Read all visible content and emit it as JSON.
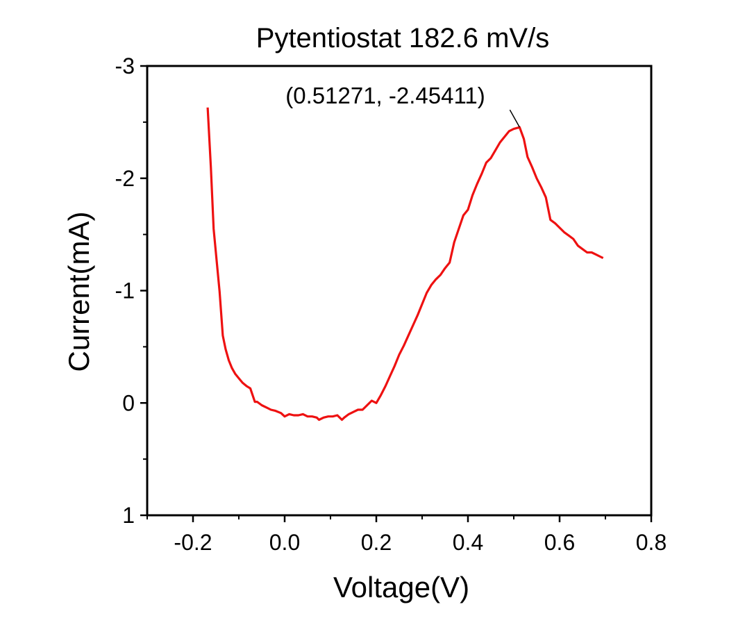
{
  "chart_data": {
    "type": "line",
    "title": "Pytentiostat 182.6 mV/s",
    "xlabel": "Voltage(V)",
    "ylabel": "Current(mA)",
    "xlim": [
      -0.3,
      0.8
    ],
    "ylim": [
      1,
      -3
    ],
    "y_axis_inverted": true,
    "xticks": [
      -0.2,
      0.0,
      0.2,
      0.4,
      0.6,
      0.8
    ],
    "xtick_labels": [
      "-0.2",
      "0.0",
      "0.2",
      "0.4",
      "0.6",
      "0.8"
    ],
    "yticks": [
      -3,
      -2,
      -1,
      0,
      1
    ],
    "ytick_labels": [
      "-3",
      "-2",
      "-1",
      "0",
      "1"
    ],
    "grid": false,
    "legend": "none",
    "series": [
      {
        "color": "#ee1111",
        "x": [
          -0.168,
          -0.161,
          -0.155,
          -0.148,
          -0.142,
          -0.135,
          -0.129,
          -0.122,
          -0.115,
          -0.108,
          -0.1,
          -0.092,
          -0.083,
          -0.075,
          -0.065,
          -0.06,
          -0.05,
          -0.04,
          -0.03,
          -0.02,
          -0.008,
          0.0,
          0.01,
          0.02,
          0.03,
          0.04,
          0.05,
          0.06,
          0.07,
          0.075,
          0.085,
          0.095,
          0.105,
          0.115,
          0.125,
          0.13,
          0.14,
          0.15,
          0.16,
          0.17,
          0.18,
          0.19,
          0.2,
          0.21,
          0.22,
          0.23,
          0.24,
          0.25,
          0.26,
          0.27,
          0.28,
          0.29,
          0.3,
          0.31,
          0.32,
          0.33,
          0.34,
          0.35,
          0.36,
          0.37,
          0.38,
          0.39,
          0.4,
          0.41,
          0.42,
          0.43,
          0.44,
          0.45,
          0.46,
          0.47,
          0.48,
          0.49,
          0.5,
          0.51271,
          0.522,
          0.53,
          0.54,
          0.55,
          0.56,
          0.57,
          0.58,
          0.59,
          0.6,
          0.61,
          0.62,
          0.63,
          0.64,
          0.65,
          0.66,
          0.67,
          0.68,
          0.69,
          0.695
        ],
        "y": [
          -2.63,
          -2.1,
          -1.55,
          -1.25,
          -0.99,
          -0.6,
          -0.48,
          -0.38,
          -0.31,
          -0.26,
          -0.22,
          -0.18,
          -0.15,
          -0.13,
          -0.01,
          -0.01,
          0.02,
          0.04,
          0.06,
          0.07,
          0.09,
          0.12,
          0.1,
          0.11,
          0.11,
          0.1,
          0.12,
          0.12,
          0.13,
          0.15,
          0.13,
          0.12,
          0.12,
          0.11,
          0.15,
          0.13,
          0.1,
          0.08,
          0.06,
          0.06,
          0.02,
          -0.02,
          0.0,
          -0.07,
          -0.15,
          -0.24,
          -0.33,
          -0.43,
          -0.51,
          -0.6,
          -0.69,
          -0.78,
          -0.88,
          -0.98,
          -1.05,
          -1.1,
          -1.14,
          -1.2,
          -1.25,
          -1.43,
          -1.55,
          -1.67,
          -1.72,
          -1.85,
          -1.95,
          -2.04,
          -2.14,
          -2.18,
          -2.25,
          -2.32,
          -2.37,
          -2.42,
          -2.44,
          -2.45411,
          -2.35,
          -2.19,
          -2.1,
          -2.0,
          -1.92,
          -1.83,
          -1.63,
          -1.6,
          -1.56,
          -1.52,
          -1.49,
          -1.46,
          -1.4,
          -1.37,
          -1.34,
          -1.34,
          -1.32,
          -1.3,
          -1.29
        ]
      }
    ],
    "annotation": {
      "text": "(0.51271, -2.45411)",
      "x": 0.51271,
      "y": -2.45411
    }
  }
}
